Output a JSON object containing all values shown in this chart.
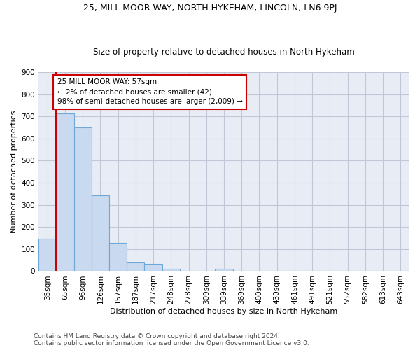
{
  "title": "25, MILL MOOR WAY, NORTH HYKEHAM, LINCOLN, LN6 9PJ",
  "subtitle": "Size of property relative to detached houses in North Hykeham",
  "xlabel": "Distribution of detached houses by size in North Hykeham",
  "ylabel": "Number of detached properties",
  "categories": [
    "35sqm",
    "65sqm",
    "96sqm",
    "126sqm",
    "157sqm",
    "187sqm",
    "217sqm",
    "248sqm",
    "278sqm",
    "309sqm",
    "339sqm",
    "369sqm",
    "400sqm",
    "430sqm",
    "461sqm",
    "491sqm",
    "521sqm",
    "552sqm",
    "582sqm",
    "613sqm",
    "643sqm"
  ],
  "values": [
    148,
    712,
    650,
    342,
    128,
    40,
    32,
    12,
    0,
    0,
    10,
    0,
    0,
    0,
    0,
    0,
    0,
    0,
    0,
    0,
    0
  ],
  "bar_color": "#c9d9f0",
  "bar_edgecolor": "#6fa8d6",
  "bar_linewidth": 0.8,
  "vline_color": "#cc0000",
  "vline_pos": 0.5,
  "annotation_text": "25 MILL MOOR WAY: 57sqm\n← 2% of detached houses are smaller (42)\n98% of semi-detached houses are larger (2,009) →",
  "annotation_box_color": "#cc0000",
  "ylim": [
    0,
    900
  ],
  "yticks": [
    0,
    100,
    200,
    300,
    400,
    500,
    600,
    700,
    800,
    900
  ],
  "grid_color": "#c0c8d8",
  "bg_color": "#e8edf5",
  "footer1": "Contains HM Land Registry data © Crown copyright and database right 2024.",
  "footer2": "Contains public sector information licensed under the Open Government Licence v3.0.",
  "title_fontsize": 9.0,
  "subtitle_fontsize": 8.5,
  "ylabel_fontsize": 8.0,
  "xlabel_fontsize": 8.0,
  "tick_fontsize": 7.5,
  "footer_fontsize": 6.5
}
